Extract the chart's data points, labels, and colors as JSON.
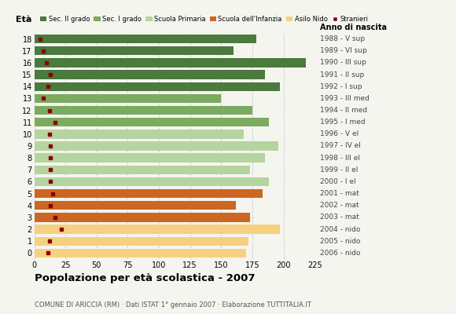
{
  "ages": [
    18,
    17,
    16,
    15,
    14,
    13,
    12,
    11,
    10,
    9,
    8,
    7,
    6,
    5,
    4,
    3,
    2,
    1,
    0
  ],
  "bar_values": [
    178,
    160,
    218,
    185,
    197,
    150,
    175,
    188,
    168,
    196,
    185,
    173,
    188,
    183,
    162,
    173,
    197,
    172,
    170
  ],
  "stranieri": [
    5,
    7,
    10,
    13,
    11,
    7,
    12,
    17,
    12,
    13,
    13,
    13,
    13,
    15,
    13,
    17,
    22,
    12,
    11
  ],
  "right_labels": [
    "1988 - V sup",
    "1989 - VI sup",
    "1990 - III sup",
    "1991 - II sup",
    "1992 - I sup",
    "1993 - III med",
    "1994 - II med",
    "1995 - I med",
    "1996 - V el",
    "1997 - IV el",
    "1998 - III el",
    "1999 - II el",
    "2000 - I el",
    "2001 - mat",
    "2002 - mat",
    "2003 - mat",
    "2004 - nido",
    "2005 - nido",
    "2006 - nido"
  ],
  "bar_colors": [
    "#4a7a3d",
    "#4a7a3d",
    "#4a7a3d",
    "#4a7a3d",
    "#4a7a3d",
    "#7aab5e",
    "#7aab5e",
    "#7aab5e",
    "#b5d4a0",
    "#b5d4a0",
    "#b5d4a0",
    "#b5d4a0",
    "#b5d4a0",
    "#cc6622",
    "#cc6622",
    "#cc6622",
    "#f5d080",
    "#f5d080",
    "#f5d080"
  ],
  "stranieri_color": "#8b0000",
  "legend_labels": [
    "Sec. II grado",
    "Sec. I grado",
    "Scuola Primaria",
    "Scuola dell'Infanzia",
    "Asilo Nido",
    "Stranieri"
  ],
  "legend_colors": [
    "#4a7a3d",
    "#7aab5e",
    "#b5d4a0",
    "#cc6622",
    "#f5d080",
    "#8b0000"
  ],
  "title": "Popolazione per età scolastica - 2007",
  "subtitle": "COMUNE DI ARICCIA (RM) · Dati ISTAT 1° gennaio 2007 · Elaborazione TUTTITALIA.IT",
  "xlabel_eta": "Età",
  "xlabel_anno": "Anno di nascita",
  "xlim": [
    0,
    225
  ],
  "xticks": [
    0,
    25,
    50,
    75,
    100,
    125,
    150,
    175,
    200,
    225
  ],
  "background_color": "#f5f5f0",
  "grid_color": "#999999"
}
